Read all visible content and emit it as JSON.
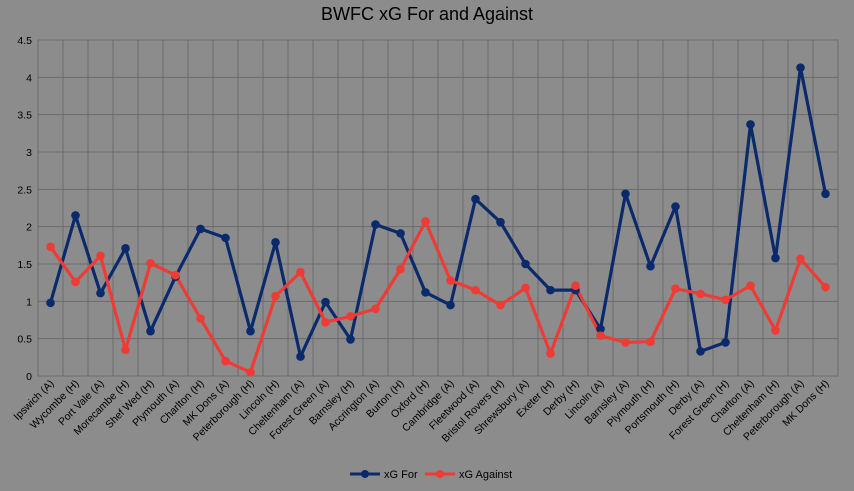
{
  "chart_data": {
    "type": "line",
    "title": "BWFC xG For and Against",
    "xlabel": "",
    "ylabel": "",
    "ylim": [
      0,
      4.5
    ],
    "yticks": [
      "0",
      "0.5",
      "1",
      "1.5",
      "2",
      "2.5",
      "3",
      "3.5",
      "4",
      "4.5"
    ],
    "grid": true,
    "legend_position": "bottom",
    "categories": [
      "Ipswich (A)",
      "Wycombe (H)",
      "Port Vale (A)",
      "Morecambe (H)",
      "Shef Wed (H)",
      "Plymouth (A)",
      "Charlton (H)",
      "MK Dons (A)",
      "Peterborough (H)",
      "Lincoln (H)",
      "Cheltenham (A)",
      "Forest Green (A)",
      "Barnsley (H)",
      "Accrington (A)",
      "Burton (H)",
      "Oxford (H)",
      "Cambridge (A)",
      "Fleetwood (A)",
      "Bristol Rovers (H)",
      "Shrewsbury (A)",
      "Exeter (H)",
      "Derby (H)",
      "Lincoln (A)",
      "Barnsley (A)",
      "Plymouth (H)",
      "Portsmouth (H)",
      "Derby (A)",
      "Forest Green (H)",
      "Charlton (A)",
      "Cheltenham (H)",
      "Peterborough (A)",
      "MK Dons (H)"
    ],
    "series": [
      {
        "name": "xG For",
        "color": "#0b2a6b",
        "values": [
          0.98,
          2.15,
          1.11,
          1.71,
          0.6,
          1.33,
          1.97,
          1.85,
          0.6,
          1.79,
          0.26,
          0.99,
          0.49,
          2.03,
          1.91,
          1.12,
          0.95,
          2.37,
          2.06,
          1.5,
          1.15,
          1.15,
          0.63,
          2.44,
          1.47,
          2.27,
          0.33,
          0.45,
          3.37,
          1.58,
          4.13,
          2.44
        ]
      },
      {
        "name": "xG Against",
        "color": "#ee3b35",
        "values": [
          1.73,
          1.26,
          1.61,
          0.35,
          1.51,
          1.35,
          0.77,
          0.2,
          0.05,
          1.07,
          1.39,
          0.72,
          0.8,
          0.9,
          1.43,
          2.07,
          1.28,
          1.15,
          0.95,
          1.18,
          0.3,
          1.21,
          0.54,
          0.45,
          0.46,
          1.17,
          1.1,
          1.02,
          1.21,
          0.61,
          1.57,
          1.19
        ]
      }
    ]
  }
}
